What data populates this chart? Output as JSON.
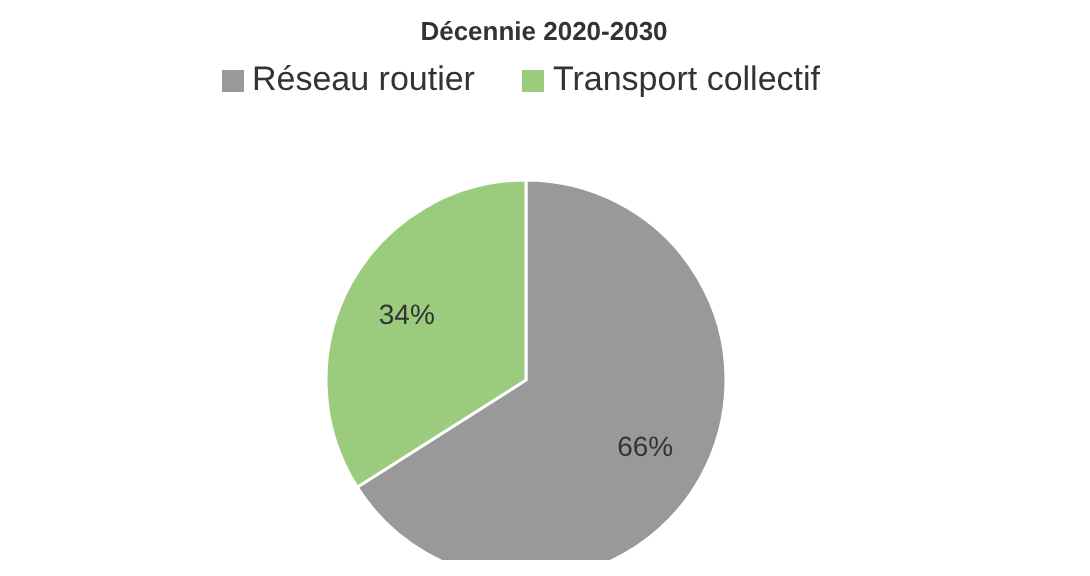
{
  "chart_data": {
    "type": "pie",
    "title": "Décennie 2020-2030",
    "categories": [
      "Réseau routier",
      "Transport collectif"
    ],
    "values": [
      66,
      34
    ],
    "colors": [
      "#999999",
      "#9bcb7c"
    ],
    "value_labels": [
      "66%",
      "34%"
    ],
    "legend": "top"
  }
}
